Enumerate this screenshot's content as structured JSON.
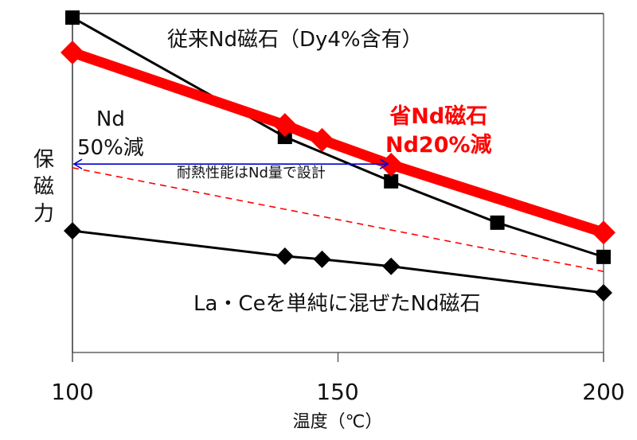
{
  "chart_data": {
    "type": "line",
    "title": "",
    "xlabel": "温度（℃）",
    "ylabel": "保磁力",
    "xlim": [
      100,
      200
    ],
    "ylim": [
      0,
      100
    ],
    "y_units": "relative (no y tick labels shown)",
    "x_ticks": [
      100,
      150,
      200
    ],
    "grid": false,
    "legend_position": "inline annotations",
    "series": [
      {
        "name": "従来Nd磁石（Dy4%含有）",
        "color": "#000000",
        "marker": "square",
        "x": [
          100,
          140,
          160,
          180,
          200
        ],
        "values": [
          98.8,
          63.6,
          50.5,
          38.3,
          28.2
        ]
      },
      {
        "name": "省Nd磁石 Nd20%減",
        "color": "#ff0000",
        "marker": "diamond",
        "line_width": "thick",
        "x": [
          100,
          140,
          147,
          160,
          200
        ],
        "values": [
          88.5,
          67.1,
          62.7,
          55.4,
          35.4
        ]
      },
      {
        "name": "La・Ceを単純に混ぜたNd磁石",
        "color": "#000000",
        "marker": "diamond",
        "x": [
          100,
          140,
          147,
          160,
          200
        ],
        "values": [
          35.9,
          28.4,
          27.5,
          25.4,
          17.6
        ]
      },
      {
        "name": "reference (dashed)",
        "color": "#ff0000",
        "style": "dashed",
        "x": [
          100,
          200
        ],
        "values": [
          54.5,
          23.9
        ]
      }
    ],
    "annotations": [
      {
        "text": "従来Nd磁石（Dy4%含有）",
        "color": "#000000"
      },
      {
        "text": "省Nd磁石",
        "color": "#ff0000",
        "bold": true
      },
      {
        "text": "Nd20%減",
        "color": "#ff0000",
        "bold": true
      },
      {
        "text": "Nd",
        "color": "#000000"
      },
      {
        "text": "50%減",
        "color": "#000000"
      },
      {
        "text": "耐熱性能はNd量で設計",
        "color": "#000000"
      },
      {
        "text": "La・Ceを単純に混ぜたNd磁石",
        "color": "#000000"
      },
      {
        "type": "double-arrow",
        "color": "#0000cc",
        "x_from": 100,
        "x_to": 160,
        "y": 55.6
      }
    ]
  },
  "labels": {
    "conventional": "従来Nd磁石（Dy4%含有）",
    "nd_saving_line1": "省Nd磁石",
    "nd_saving_line2": "Nd20%減",
    "nd50_line1": "Nd",
    "nd50_line2": "50%減",
    "design_note": "耐熱性能はNd量で設計",
    "lace": "La・Ceを単純に混ぜたNd磁石",
    "ylabel_chars": [
      "保",
      "磁",
      "力"
    ],
    "xlabel": "温度（℃）",
    "xticks": [
      "100",
      "150",
      "200"
    ]
  },
  "colors": {
    "red": "#ff0000",
    "black": "#000000",
    "blue": "#0000cc",
    "axis": "#444444"
  }
}
